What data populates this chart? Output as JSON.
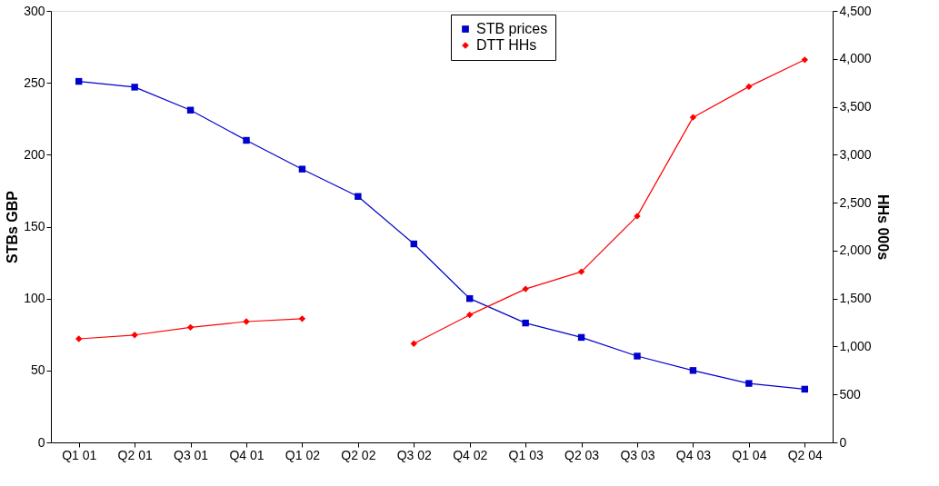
{
  "chart_data": {
    "type": "line",
    "ylabel": "STBs GBP",
    "y2label": "HHs 000s",
    "categories": [
      "Q1 01",
      "Q2 01",
      "Q3 01",
      "Q4 01",
      "Q1 02",
      "Q2 02",
      "Q3 02",
      "Q4 02",
      "Q1 03",
      "Q2 03",
      "Q3 03",
      "Q4 03",
      "Q1 04",
      "Q2 04"
    ],
    "series": [
      {
        "name": "STB prices",
        "color": "#0000cc",
        "marker": "square",
        "values": [
          251,
          247,
          231,
          210,
          190,
          171,
          138,
          100,
          83,
          73,
          60,
          50,
          41,
          37
        ]
      },
      {
        "name": "DTT HHs",
        "color": "#ff0000",
        "marker": "diamond",
        "axis": "y2",
        "values": [
          1080,
          1120,
          1200,
          1260,
          1290,
          null,
          1030,
          1330,
          1600,
          1780,
          2360,
          3390,
          3710,
          3990
        ]
      }
    ],
    "ylim": [
      0,
      300
    ],
    "yticks": [
      0,
      50,
      100,
      150,
      200,
      250,
      300
    ],
    "y2lim": [
      0,
      4500
    ],
    "y2ticks": [
      0,
      {
        "value": 500,
        "label": "500"
      },
      {
        "value": 1000,
        "label": "1,000"
      },
      {
        "value": 1500,
        "label": "1,500"
      },
      {
        "value": 2000,
        "label": "2,000"
      },
      {
        "value": 2500,
        "label": "2,500"
      },
      {
        "value": 3000,
        "label": "3,000"
      },
      {
        "value": 3500,
        "label": "3,500"
      },
      {
        "value": 4000,
        "label": "4,000"
      },
      {
        "value": 4500,
        "label": "4,500"
      }
    ],
    "legend": "top",
    "grid": false,
    "line_style": "solid"
  }
}
